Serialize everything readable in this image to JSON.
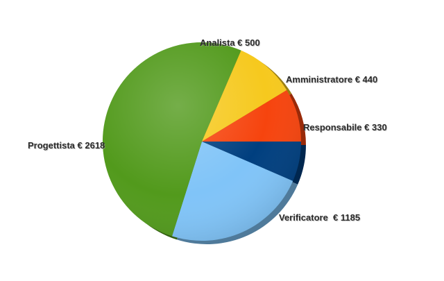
{
  "chart_data": {
    "type": "pie",
    "title": "",
    "currency": "€",
    "slices": [
      {
        "label": "Responsabile",
        "value": 330,
        "color": "#003f7f",
        "label_text": "Responsabile € 330"
      },
      {
        "label": "Verificatore",
        "value": 1185,
        "color": "#80c4f8",
        "label_text": "Verificatore  € 1185"
      },
      {
        "label": "Progettista",
        "value": 2618,
        "color": "#529a1c",
        "label_text": "Progettista € 2618"
      },
      {
        "label": "Analista",
        "value": 500,
        "color": "#f6c91e",
        "label_text": "Analista € 500"
      },
      {
        "label": "Amministratore",
        "value": 440,
        "color": "#f6440e",
        "label_text": "Amministratore € 440"
      }
    ],
    "start": "3 o'clock",
    "direction": "clockwise",
    "legend": "none",
    "style": "3d-shaded"
  }
}
